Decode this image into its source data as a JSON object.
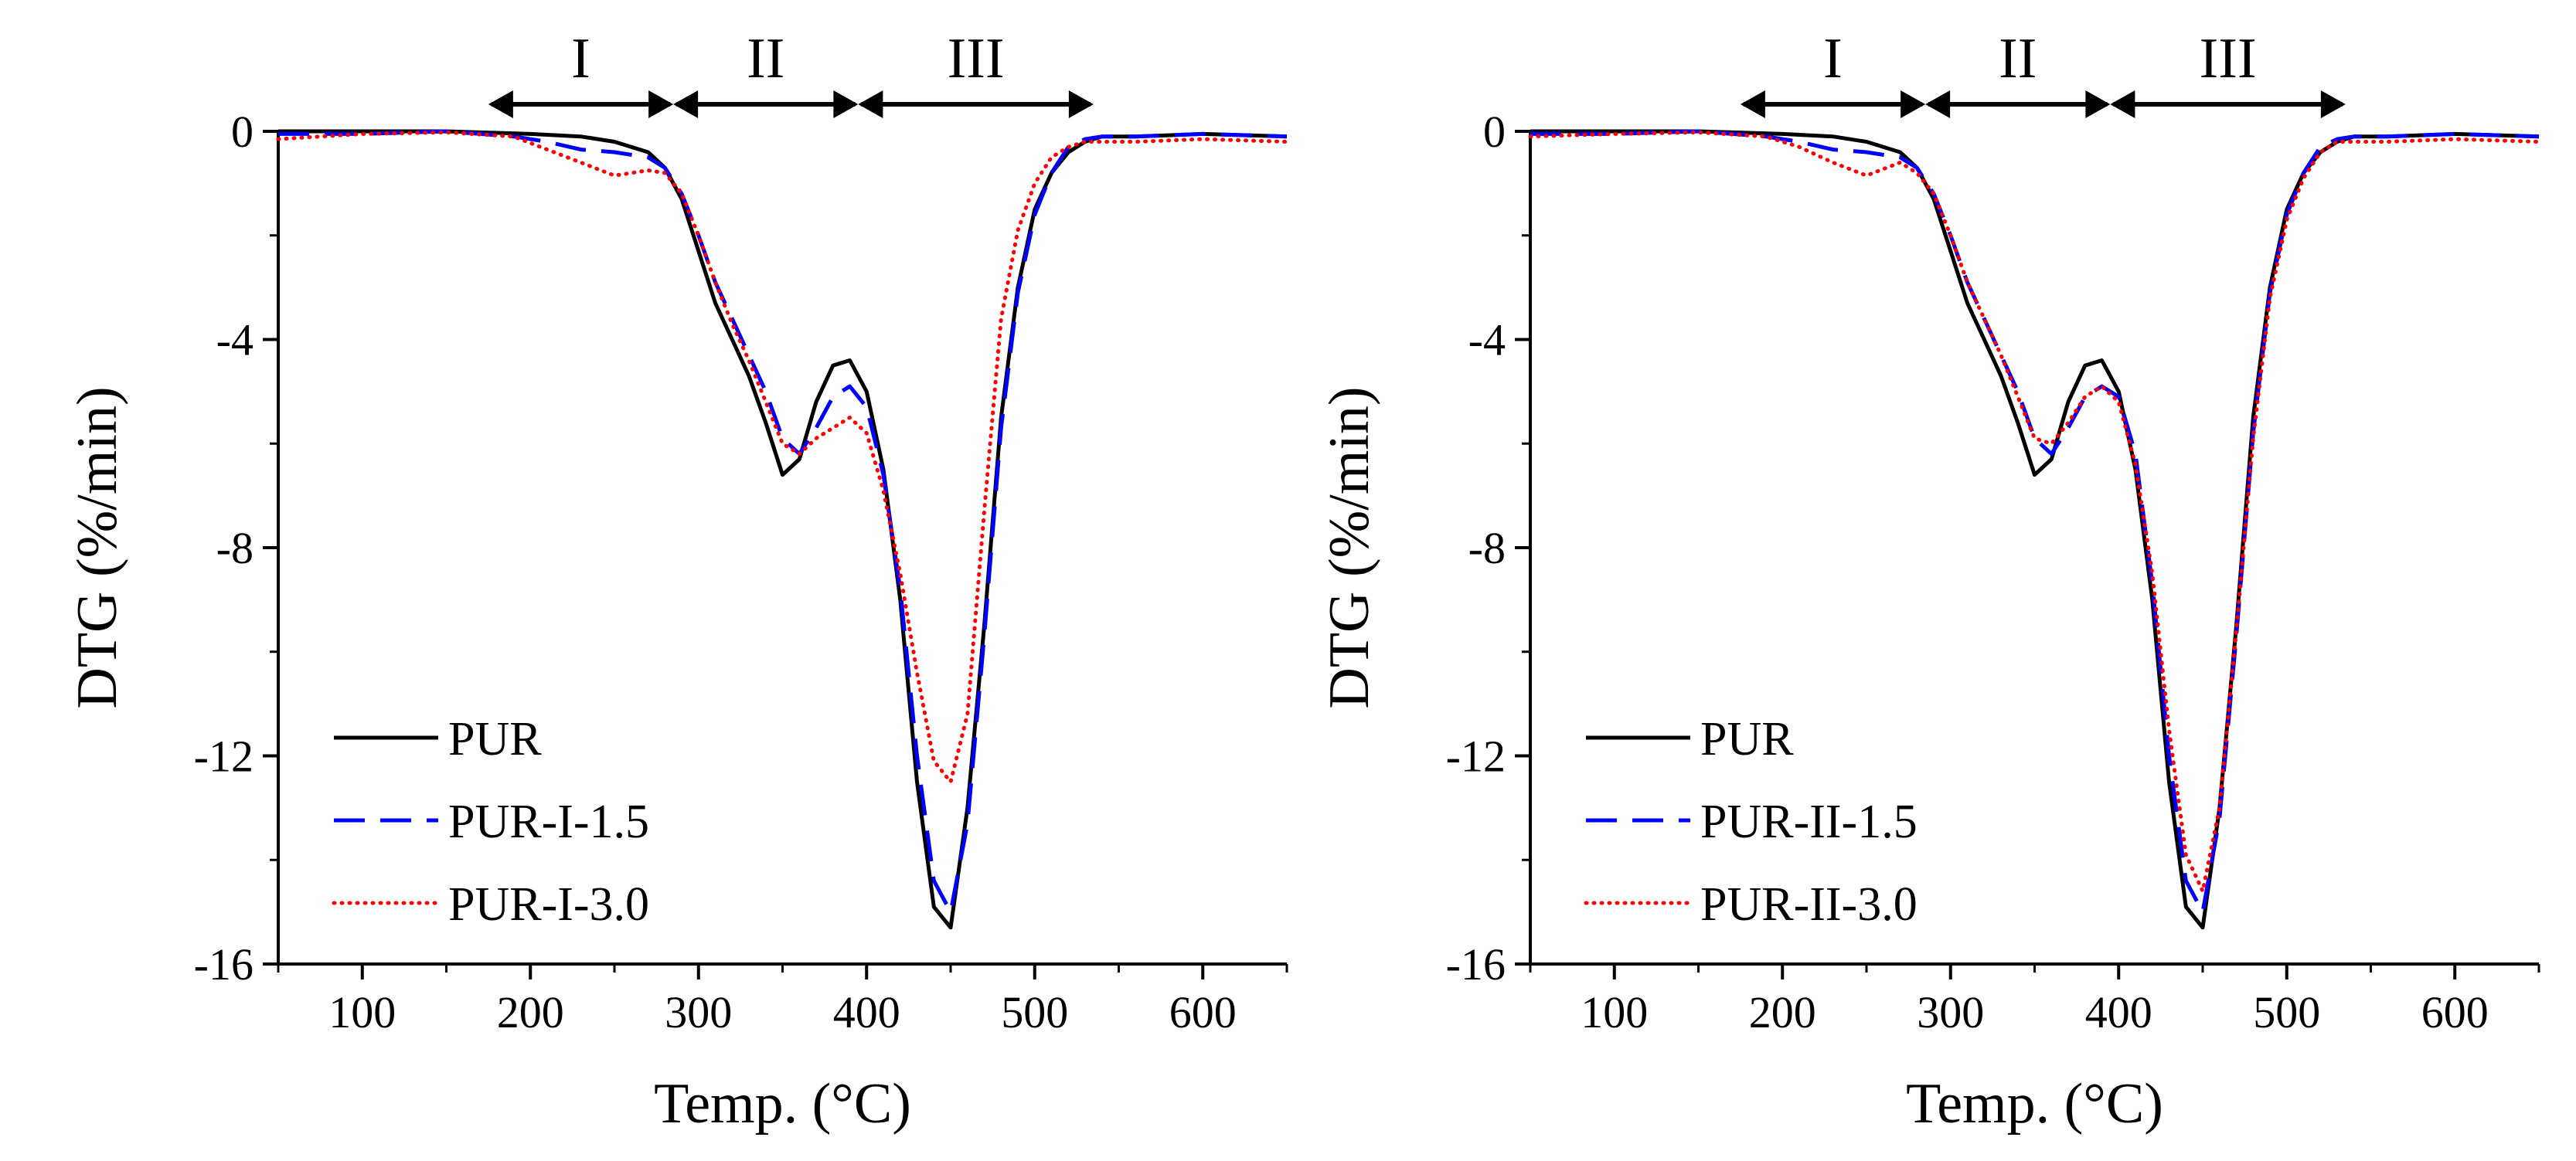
{
  "figure": {
    "colors": {
      "PUR": "#000000",
      "series2": "#0000ff",
      "series3": "#ff0000"
    }
  },
  "chart_data": [
    {
      "type": "line",
      "xlabel": "Temp. (°C)",
      "ylabel": "DTG (%/min)",
      "xlim": [
        50,
        650
      ],
      "ylim": [
        -16,
        0
      ],
      "xticks": [
        100,
        200,
        300,
        400,
        500,
        600
      ],
      "xtick_labels": [
        "100",
        "200",
        "300",
        "400",
        "500",
        "600"
      ],
      "yticks": [
        0,
        -4,
        -8,
        -12,
        -16
      ],
      "ytick_labels": [
        "0",
        "-4",
        "-8",
        "-12",
        "-16"
      ],
      "legend_position": "bottom-left",
      "regions": [
        {
          "label": "I",
          "from": 175,
          "to": 285
        },
        {
          "label": "II",
          "from": 285,
          "to": 395
        },
        {
          "label": "III",
          "from": 395,
          "to": 535
        }
      ],
      "series": [
        {
          "name": "PUR",
          "style": "solid",
          "color": "#000000",
          "x": [
            50,
            100,
            150,
            200,
            230,
            250,
            270,
            280,
            290,
            300,
            310,
            320,
            330,
            340,
            350,
            360,
            370,
            380,
            390,
            400,
            410,
            420,
            430,
            440,
            450,
            460,
            470,
            480,
            490,
            500,
            510,
            520,
            530,
            540,
            560,
            600,
            650
          ],
          "y": [
            0,
            0,
            0,
            -0.05,
            -0.1,
            -0.2,
            -0.4,
            -0.7,
            -1.3,
            -2.3,
            -3.3,
            -4.0,
            -4.7,
            -5.6,
            -6.6,
            -6.3,
            -5.2,
            -4.5,
            -4.4,
            -5.0,
            -6.5,
            -9.0,
            -12.5,
            -14.9,
            -15.3,
            -13.0,
            -9.5,
            -5.5,
            -3.0,
            -1.5,
            -0.8,
            -0.4,
            -0.2,
            -0.1,
            -0.1,
            -0.05,
            -0.1
          ]
        },
        {
          "name": "PUR-I-1.5",
          "style": "dashed",
          "color": "#0000ff",
          "x": [
            50,
            100,
            150,
            190,
            210,
            230,
            250,
            270,
            280,
            290,
            300,
            310,
            320,
            330,
            340,
            350,
            360,
            370,
            380,
            390,
            400,
            410,
            420,
            430,
            440,
            450,
            460,
            470,
            480,
            490,
            500,
            510,
            520,
            530,
            540,
            560,
            600,
            650
          ],
          "y": [
            -0.05,
            -0.05,
            0,
            -0.1,
            -0.2,
            -0.35,
            -0.4,
            -0.5,
            -0.7,
            -1.2,
            -2.0,
            -2.9,
            -3.6,
            -4.3,
            -5.0,
            -5.9,
            -6.2,
            -5.7,
            -5.1,
            -4.9,
            -5.3,
            -6.6,
            -8.8,
            -12.0,
            -14.4,
            -15.0,
            -13.3,
            -9.7,
            -5.7,
            -3.1,
            -1.6,
            -0.8,
            -0.3,
            -0.15,
            -0.1,
            -0.1,
            -0.05,
            -0.1
          ]
        },
        {
          "name": "PUR-I-3.0",
          "style": "dotted",
          "color": "#ff0000",
          "x": [
            50,
            100,
            150,
            190,
            210,
            230,
            250,
            270,
            280,
            290,
            300,
            310,
            320,
            330,
            340,
            350,
            360,
            370,
            380,
            390,
            400,
            410,
            420,
            430,
            440,
            450,
            460,
            470,
            480,
            490,
            500,
            510,
            520,
            530,
            540,
            560,
            600,
            650
          ],
          "y": [
            -0.15,
            -0.05,
            -0.02,
            -0.1,
            -0.35,
            -0.6,
            -0.85,
            -0.75,
            -0.8,
            -1.2,
            -2.0,
            -2.9,
            -3.7,
            -4.4,
            -5.2,
            -6.0,
            -6.2,
            -5.9,
            -5.7,
            -5.5,
            -5.8,
            -6.9,
            -8.5,
            -10.4,
            -12.1,
            -12.5,
            -11.2,
            -7.3,
            -3.6,
            -1.9,
            -1.0,
            -0.5,
            -0.3,
            -0.2,
            -0.2,
            -0.2,
            -0.15,
            -0.2
          ]
        }
      ],
      "legend": [
        {
          "label": "PUR",
          "style": "solid",
          "color": "#000000"
        },
        {
          "label": "PUR-I-1.5",
          "style": "dashed",
          "color": "#0000ff"
        },
        {
          "label": "PUR-I-3.0",
          "style": "dotted",
          "color": "#ff0000"
        }
      ]
    },
    {
      "type": "line",
      "xlabel": "Temp. (°C)",
      "ylabel": "DTG (%/min)",
      "xlim": [
        50,
        650
      ],
      "ylim": [
        -16,
        0
      ],
      "xticks": [
        100,
        200,
        300,
        400,
        500,
        600
      ],
      "xtick_labels": [
        "100",
        "200",
        "300",
        "400",
        "500",
        "600"
      ],
      "yticks": [
        0,
        -4,
        -8,
        -12,
        -16
      ],
      "ytick_labels": [
        "0",
        "-4",
        "-8",
        "-12",
        "-16"
      ],
      "legend_position": "bottom-left",
      "regions": [
        {
          "label": "I",
          "from": 175,
          "to": 285
        },
        {
          "label": "II",
          "from": 285,
          "to": 395
        },
        {
          "label": "III",
          "from": 395,
          "to": 535
        }
      ],
      "series": [
        {
          "name": "PUR",
          "style": "solid",
          "color": "#000000",
          "x": [
            50,
            100,
            150,
            200,
            230,
            250,
            270,
            280,
            290,
            300,
            310,
            320,
            330,
            340,
            350,
            360,
            370,
            380,
            390,
            400,
            410,
            420,
            430,
            440,
            450,
            460,
            470,
            480,
            490,
            500,
            510,
            520,
            530,
            540,
            560,
            600,
            650
          ],
          "y": [
            0,
            0,
            0,
            -0.05,
            -0.1,
            -0.2,
            -0.4,
            -0.7,
            -1.3,
            -2.3,
            -3.3,
            -4.0,
            -4.7,
            -5.6,
            -6.6,
            -6.3,
            -5.2,
            -4.5,
            -4.4,
            -5.0,
            -6.5,
            -9.0,
            -12.5,
            -14.9,
            -15.3,
            -13.0,
            -9.5,
            -5.5,
            -3.0,
            -1.5,
            -0.8,
            -0.4,
            -0.2,
            -0.1,
            -0.1,
            -0.05,
            -0.1
          ]
        },
        {
          "name": "PUR-II-1.5",
          "style": "dashed",
          "color": "#0000ff",
          "x": [
            50,
            100,
            150,
            190,
            210,
            230,
            250,
            270,
            280,
            290,
            300,
            310,
            320,
            330,
            340,
            350,
            360,
            370,
            380,
            390,
            400,
            410,
            420,
            430,
            440,
            450,
            460,
            470,
            480,
            490,
            500,
            510,
            520,
            530,
            540,
            560,
            600,
            650
          ],
          "y": [
            -0.05,
            -0.05,
            0,
            -0.1,
            -0.2,
            -0.35,
            -0.4,
            -0.5,
            -0.7,
            -1.2,
            -2.0,
            -2.9,
            -3.6,
            -4.3,
            -5.0,
            -5.9,
            -6.2,
            -5.7,
            -5.1,
            -4.9,
            -5.1,
            -6.2,
            -8.7,
            -12.0,
            -14.4,
            -15.0,
            -13.2,
            -9.7,
            -5.8,
            -3.1,
            -1.6,
            -0.8,
            -0.3,
            -0.15,
            -0.1,
            -0.1,
            -0.05,
            -0.1
          ]
        },
        {
          "name": "PUR-II-3.0",
          "style": "dotted",
          "color": "#ff0000",
          "x": [
            50,
            100,
            150,
            190,
            210,
            230,
            250,
            270,
            280,
            290,
            300,
            310,
            320,
            330,
            340,
            350,
            360,
            370,
            380,
            390,
            400,
            410,
            420,
            430,
            440,
            450,
            460,
            470,
            480,
            490,
            500,
            510,
            520,
            530,
            540,
            560,
            600,
            650
          ],
          "y": [
            -0.1,
            -0.05,
            -0.02,
            -0.1,
            -0.3,
            -0.6,
            -0.85,
            -0.6,
            -0.8,
            -1.2,
            -2.0,
            -2.9,
            -3.6,
            -4.3,
            -5.1,
            -5.9,
            -6.0,
            -5.6,
            -5.1,
            -4.9,
            -5.2,
            -6.4,
            -8.5,
            -11.5,
            -13.9,
            -14.6,
            -13.0,
            -9.6,
            -5.9,
            -3.2,
            -1.7,
            -0.9,
            -0.4,
            -0.2,
            -0.2,
            -0.2,
            -0.15,
            -0.2
          ]
        }
      ],
      "legend": [
        {
          "label": "PUR",
          "style": "solid",
          "color": "#000000"
        },
        {
          "label": "PUR-II-1.5",
          "style": "dashed",
          "color": "#0000ff"
        },
        {
          "label": "PUR-II-3.0",
          "style": "dotted",
          "color": "#ff0000"
        }
      ]
    }
  ]
}
